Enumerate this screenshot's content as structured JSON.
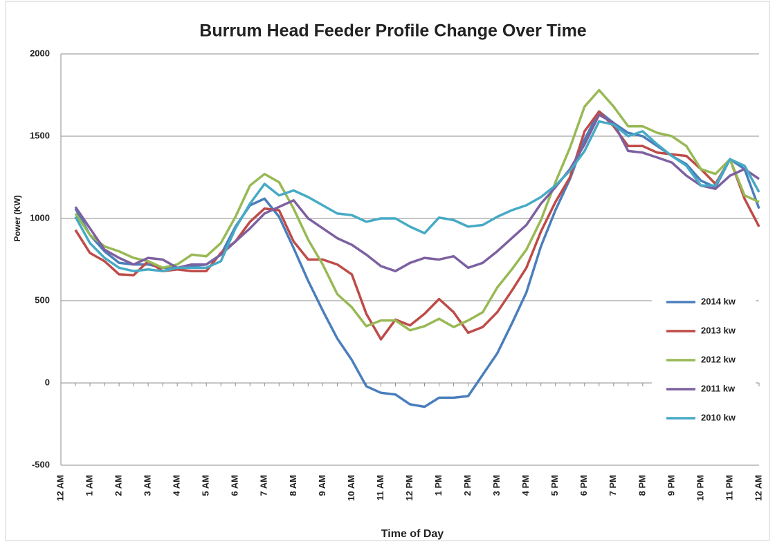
{
  "chart_data": {
    "type": "line",
    "title": "Burrum Head Feeder Profile Change Over Time",
    "x_label": "Time of Day",
    "y_label": "Power (KW)",
    "categories": [
      "12 AM",
      null,
      "1 AM",
      null,
      "2 AM",
      null,
      "3 AM",
      null,
      "4 AM",
      null,
      "5 AM",
      null,
      "6 AM",
      null,
      "7 AM",
      null,
      "8 AM",
      null,
      "9 AM",
      null,
      "10 AM",
      null,
      "11 AM",
      null,
      "12 PM",
      null,
      "1 PM",
      null,
      "2 PM",
      null,
      "3 PM",
      null,
      "4 PM",
      null,
      "5 PM",
      null,
      "6 PM",
      null,
      "7 PM",
      null,
      "8 PM",
      null,
      "9 PM",
      null,
      "10 PM",
      null,
      "11 PM",
      null,
      "12 AM"
    ],
    "series": [
      {
        "name": "2014 kw",
        "color": "#4a7ebb",
        "values": [
          null,
          1060,
          900,
          800,
          730,
          720,
          720,
          700,
          700,
          710,
          720,
          780,
          950,
          1080,
          1120,
          1010,
          820,
          620,
          440,
          270,
          140,
          -20,
          -60,
          -70,
          -130,
          -145,
          -90,
          -90,
          -80,
          50,
          180,
          360,
          550,
          830,
          1050,
          1240,
          1480,
          1650,
          1580,
          1520,
          1500,
          1440,
          1380,
          1330,
          1230,
          1190,
          1360,
          1300,
          1060
        ]
      },
      {
        "name": "2013 kw",
        "color": "#be4b48",
        "values": [
          null,
          930,
          790,
          740,
          660,
          655,
          740,
          680,
          690,
          680,
          680,
          790,
          860,
          980,
          1060,
          1050,
          860,
          750,
          750,
          720,
          660,
          420,
          265,
          385,
          350,
          420,
          510,
          430,
          305,
          340,
          430,
          560,
          700,
          920,
          1100,
          1250,
          1530,
          1650,
          1560,
          1440,
          1440,
          1400,
          1390,
          1380,
          1300,
          1210,
          1360,
          1120,
          950
        ]
      },
      {
        "name": "2012 kw",
        "color": "#98b954",
        "values": [
          null,
          1030,
          900,
          830,
          800,
          760,
          740,
          700,
          720,
          780,
          770,
          850,
          1010,
          1200,
          1270,
          1220,
          1060,
          870,
          720,
          540,
          460,
          345,
          380,
          380,
          320,
          345,
          390,
          340,
          380,
          430,
          580,
          690,
          810,
          990,
          1220,
          1430,
          1680,
          1780,
          1680,
          1560,
          1560,
          1520,
          1500,
          1440,
          1300,
          1270,
          1360,
          1140,
          1100
        ]
      },
      {
        "name": "2011 kw",
        "color": "#7d60a0",
        "values": [
          null,
          1070,
          940,
          810,
          760,
          720,
          760,
          750,
          700,
          720,
          720,
          780,
          860,
          940,
          1030,
          1070,
          1110,
          1000,
          940,
          880,
          840,
          780,
          710,
          680,
          730,
          760,
          750,
          770,
          700,
          730,
          800,
          880,
          960,
          1090,
          1190,
          1300,
          1450,
          1630,
          1580,
          1410,
          1400,
          1370,
          1340,
          1260,
          1200,
          1180,
          1260,
          1300,
          1240
        ]
      },
      {
        "name": "2010 kw",
        "color": "#46aac5",
        "values": [
          null,
          1010,
          850,
          760,
          700,
          680,
          690,
          680,
          700,
          700,
          700,
          740,
          940,
          1090,
          1210,
          1140,
          1170,
          1130,
          1080,
          1030,
          1020,
          980,
          1000,
          1000,
          950,
          910,
          1005,
          990,
          950,
          960,
          1010,
          1050,
          1080,
          1130,
          1200,
          1290,
          1410,
          1590,
          1570,
          1500,
          1530,
          1450,
          1380,
          1320,
          1200,
          1200,
          1360,
          1320,
          1160
        ]
      }
    ],
    "ylim": [
      -500,
      2000
    ],
    "yticks": [
      -500,
      0,
      500,
      1000,
      1500,
      2000
    ],
    "grid": true,
    "legend": "right"
  }
}
